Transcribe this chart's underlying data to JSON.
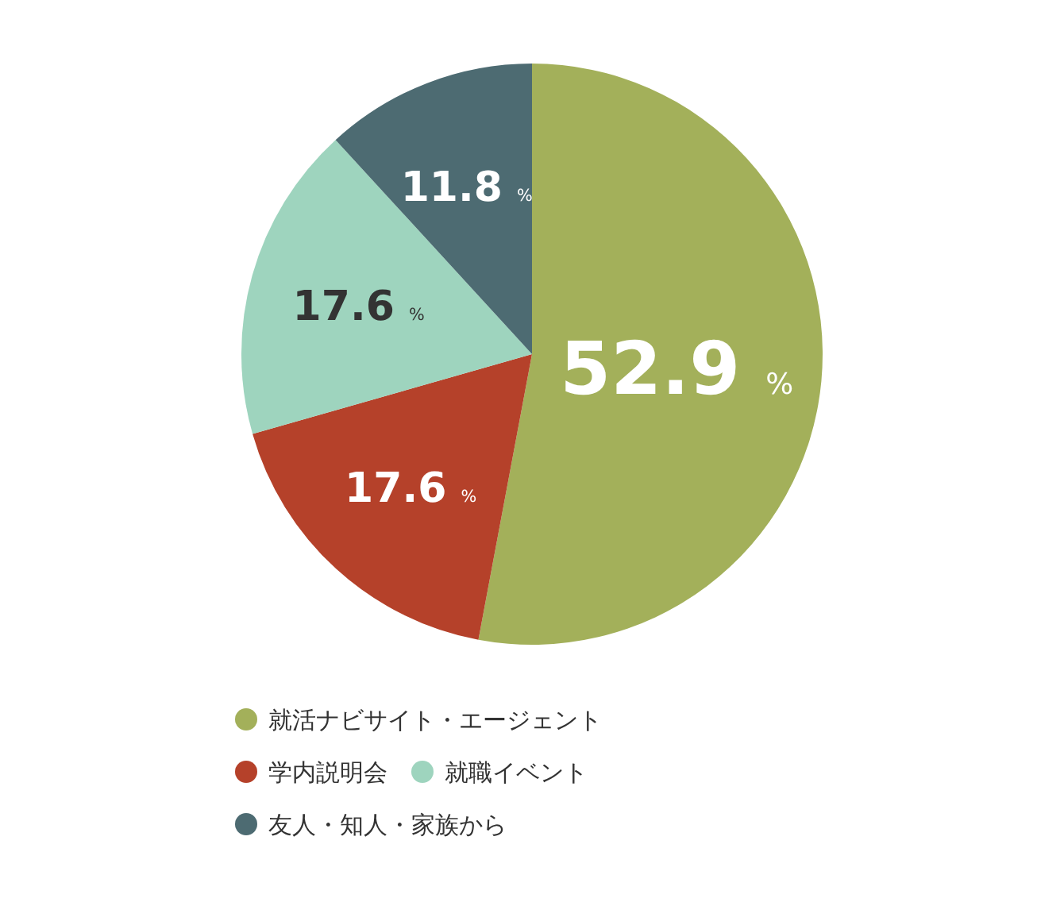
{
  "chart_data": {
    "type": "pie",
    "categories": [
      "就活ナビサイト・エージェント",
      "学内説明会",
      "就職イベント",
      "友人・知人・家族から"
    ],
    "values": [
      52.9,
      17.6,
      17.6,
      11.8
    ],
    "colors": [
      "#a3b05a",
      "#b5412a",
      "#9ed4be",
      "#4d6b72"
    ],
    "value_labels": [
      "52.9 %",
      "17.6 %",
      "17.6 %",
      "11.8 %"
    ],
    "legend": "bottom"
  }
}
